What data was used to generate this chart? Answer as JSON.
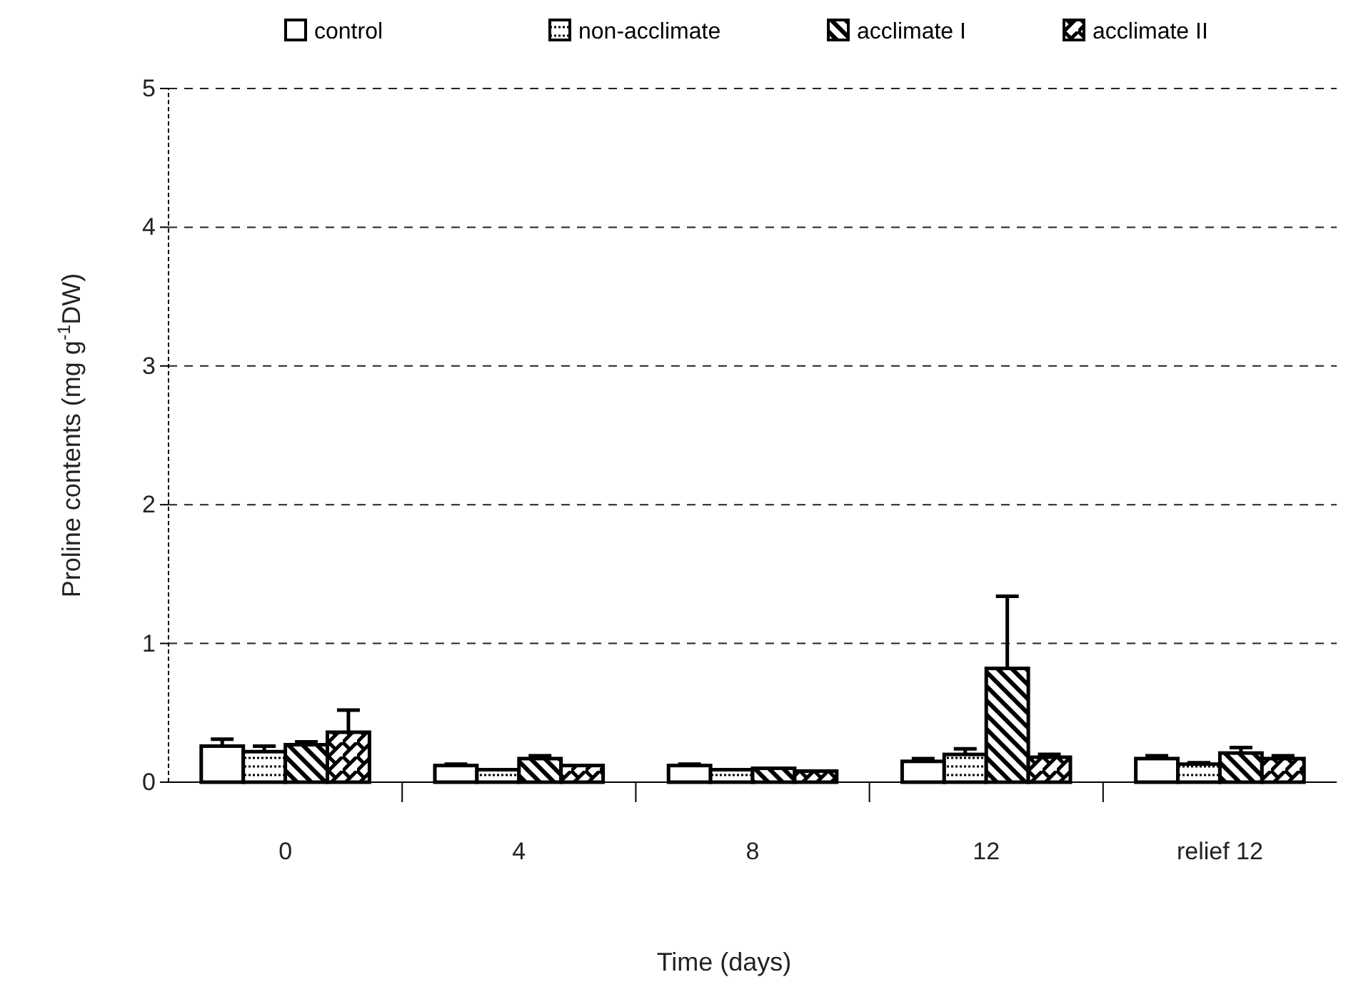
{
  "chart_data": {
    "type": "bar",
    "xlabel": "Time (days)",
    "ylabel": "Proline contents (mg g$^{-1}$DW)",
    "categories": [
      "0",
      "4",
      "8",
      "12",
      "relief 12"
    ],
    "series": [
      {
        "name": "control",
        "color": "#000000",
        "values": [
          0.26,
          0.12,
          0.12,
          0.15,
          0.17
        ],
        "errors": [
          [
            0.26,
            0.31
          ],
          [
            0.12,
            0.13
          ],
          [
            0.12,
            0.13
          ],
          [
            0.15,
            0.17
          ],
          [
            0.17,
            0.19
          ]
        ]
      },
      {
        "name": "non-acclimate",
        "color": "#000000",
        "values": [
          0.22,
          0.09,
          0.09,
          0.2,
          0.13
        ],
        "errors": [
          [
            0.22,
            0.26
          ],
          null,
          null,
          [
            0.2,
            0.24
          ],
          [
            0.13,
            0.14
          ]
        ]
      },
      {
        "name": "acclimate I",
        "color": "#000000",
        "values": [
          0.27,
          0.17,
          0.1,
          0.82,
          0.21
        ],
        "errors": [
          [
            0.27,
            0.29
          ],
          [
            0.17,
            0.19
          ],
          null,
          [
            0.82,
            1.34
          ],
          [
            0.21,
            0.25
          ]
        ]
      },
      {
        "name": "acclimate II",
        "color": "#000000",
        "values": [
          0.36,
          0.12,
          0.08,
          0.18,
          0.17
        ],
        "errors": [
          [
            0.36,
            0.52
          ],
          null,
          null,
          [
            0.18,
            0.2
          ],
          [
            0.17,
            0.19
          ]
        ]
      }
    ],
    "ylim": [
      0,
      5
    ],
    "yticks": [
      0,
      1,
      2,
      3,
      4,
      5
    ],
    "grid": "y",
    "legend": "top"
  }
}
